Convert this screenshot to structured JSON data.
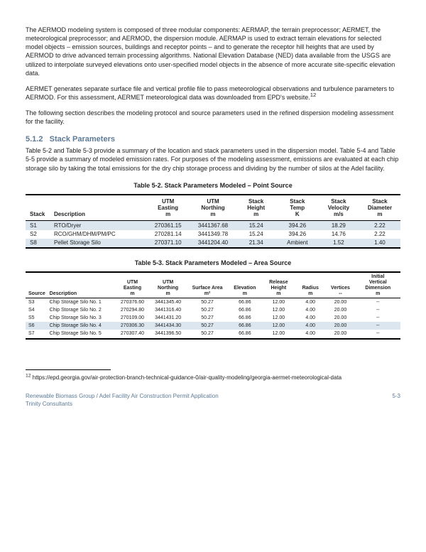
{
  "para1": "The AERMOD modeling system is composed of three modular components: AERMAP, the terrain preprocessor; AERMET, the meteorological preprocessor; and AERMOD, the dispersion module. AERMAP is used to extract terrain elevations for selected model objects – emission sources, buildings and receptor points – and to generate the receptor hill heights that are used by AERMOD to drive advanced terrain processing algorithms. National Elevation Database (NED) data available from the USGS are utilized to interpolate surveyed elevations onto user-specified model objects in the absence of more accurate site-specific elevation data.",
  "para2a": "AERMET generates separate surface file and vertical profile file to pass meteorological observations and turbulence parameters to AERMOD. For this assessment, AERMET meteorological data was downloaded from EPD's website.",
  "para2ref": "12",
  "para3": "The following section describes the modeling protocol and source parameters used in the refined dispersion modeling assessment for the facility.",
  "section_no": "5.1.2",
  "section_title": "Stack Parameters",
  "para4": "Table 5-2 and Table 5-3 provide a summary of the location and stack parameters used in the dispersion model. Table 5-4 and Table 5-5 provide a summary of modeled emission rates. For purposes of the modeling assessment, emissions are evaluated at each chip storage silo by taking the total emissions for the dry chip storage process and dividing by the number of silos at the Adel facility.",
  "table1": {
    "caption": "Table 5-2. Stack Parameters Modeled – Point Source",
    "headers": [
      {
        "l1": "",
        "l2": "Stack"
      },
      {
        "l1": "",
        "l2": "Description"
      },
      {
        "l1": "UTM",
        "l2": "Easting",
        "u": "m"
      },
      {
        "l1": "UTM",
        "l2": "Northing",
        "u": "m"
      },
      {
        "l1": "Stack",
        "l2": "Height",
        "u": "m"
      },
      {
        "l1": "Stack",
        "l2": "Temp",
        "u": "K"
      },
      {
        "l1": "Stack",
        "l2": "Velocity",
        "u": "m/s"
      },
      {
        "l1": "Stack",
        "l2": "Diameter",
        "u": "m"
      }
    ],
    "rows": [
      {
        "shade": true,
        "c": [
          "S1",
          "RTO/Dryer",
          "270361.15",
          "3441367.68",
          "15.24",
          "394.26",
          "18.29",
          "2.22"
        ]
      },
      {
        "shade": false,
        "c": [
          "S2",
          "RCO/GHM/DHM/PM/PC",
          "270281.14",
          "3441349.78",
          "15.24",
          "394.26",
          "14.76",
          "2.22"
        ]
      },
      {
        "shade": true,
        "c": [
          "S8",
          "Pellet Storage Silo",
          "270371.10",
          "3441204.40",
          "21.34",
          "Ambient",
          "1.52",
          "1.40"
        ]
      }
    ]
  },
  "table2": {
    "caption": "Table 5-3. Stack Parameters Modeled – Area Source",
    "headers": [
      {
        "l1": "",
        "l2": "Source"
      },
      {
        "l1": "",
        "l2": "Description"
      },
      {
        "l1": "UTM",
        "l2": "Easting",
        "u": "m"
      },
      {
        "l1": "UTM",
        "l2": "Northing",
        "u": "m"
      },
      {
        "l1": "",
        "l2": "Surface Area",
        "u": "m²"
      },
      {
        "l1": "",
        "l2": "Elevation",
        "u": "m"
      },
      {
        "l1": "Release",
        "l2": "Height",
        "u": "m"
      },
      {
        "l1": "",
        "l2": "Radius",
        "u": "m"
      },
      {
        "l1": "",
        "l2": "Vertices",
        "u": "--"
      },
      {
        "l1": "Initial",
        "l2": "Vertical",
        "l3": "Dimension",
        "u": "m"
      }
    ],
    "rows": [
      {
        "shade": false,
        "c": [
          "S3",
          "Chip Storage Silo No. 1",
          "270376.60",
          "3441345.40",
          "50.27",
          "66.86",
          "12.00",
          "4.00",
          "20.00",
          "--"
        ]
      },
      {
        "shade": false,
        "c": [
          "S4",
          "Chip Storage Silo No. 2",
          "270294.80",
          "3441316.40",
          "50.27",
          "66.86",
          "12.00",
          "4.00",
          "20.00",
          "--"
        ]
      },
      {
        "shade": false,
        "c": [
          "S5",
          "Chip Storage Silo No. 3",
          "270109.00",
          "3441431.20",
          "50.27",
          "66.86",
          "12.00",
          "4.00",
          "20.00",
          "--"
        ]
      },
      {
        "shade": true,
        "c": [
          "S6",
          "Chip Storage Silo No. 4",
          "270306.30",
          "3441434.30",
          "50.27",
          "66.86",
          "12.00",
          "4.00",
          "20.00",
          "--"
        ]
      },
      {
        "shade": false,
        "c": [
          "S7",
          "Chip Storage Silo No. 5",
          "270307.40",
          "3441396.50",
          "50.27",
          "66.86",
          "12.00",
          "4.00",
          "20.00",
          "--"
        ]
      }
    ]
  },
  "footnote": {
    "marker": "12",
    "text": " https://epd.georgia.gov/air-protection-branch-technical-guidance-0/air-quality-modeling/georgia-aermet-meteorological-data"
  },
  "footer": {
    "line1": "Renewable Biomass Group / Adel Facility Air Construction Permit Application",
    "line2": "Trinity Consultants",
    "page": "5-3"
  }
}
